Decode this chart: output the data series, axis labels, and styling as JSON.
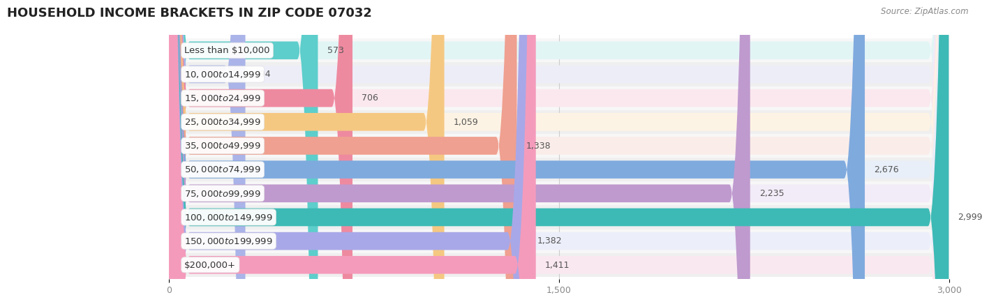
{
  "title": "HOUSEHOLD INCOME BRACKETS IN ZIP CODE 07032",
  "source": "Source: ZipAtlas.com",
  "categories": [
    "Less than $10,000",
    "$10,000 to $14,999",
    "$15,000 to $24,999",
    "$25,000 to $34,999",
    "$35,000 to $49,999",
    "$50,000 to $74,999",
    "$75,000 to $99,999",
    "$100,000 to $149,999",
    "$150,000 to $199,999",
    "$200,000+"
  ],
  "values": [
    573,
    294,
    706,
    1059,
    1338,
    2676,
    2235,
    2999,
    1382,
    1411
  ],
  "bar_colors": [
    "#5DCECB",
    "#AAB4E8",
    "#EE8AA0",
    "#F5C882",
    "#EFA090",
    "#7FAADE",
    "#BF9ACE",
    "#3DBAB5",
    "#A8A8E8",
    "#F49BBB"
  ],
  "bar_bg_colors": [
    "#E2F5F5",
    "#EDEDF8",
    "#FAE8EE",
    "#FDF3E4",
    "#FAEDE9",
    "#E8EFF8",
    "#F2EBF8",
    "#DFF2F2",
    "#ECEEFA",
    "#FAE8F0"
  ],
  "row_bg_colors": [
    "#F5F5F5",
    "#EFEFEF",
    "#F5F5F5",
    "#EFEFEF",
    "#F5F5F5",
    "#EFEFEF",
    "#F5F5F5",
    "#EFEFEF",
    "#F5F5F5",
    "#EFEFEF"
  ],
  "xlim": [
    0,
    3000
  ],
  "xticks": [
    0,
    1500,
    3000
  ],
  "background_color": "#FFFFFF",
  "title_fontsize": 13,
  "label_fontsize": 9.5,
  "value_fontsize": 9
}
